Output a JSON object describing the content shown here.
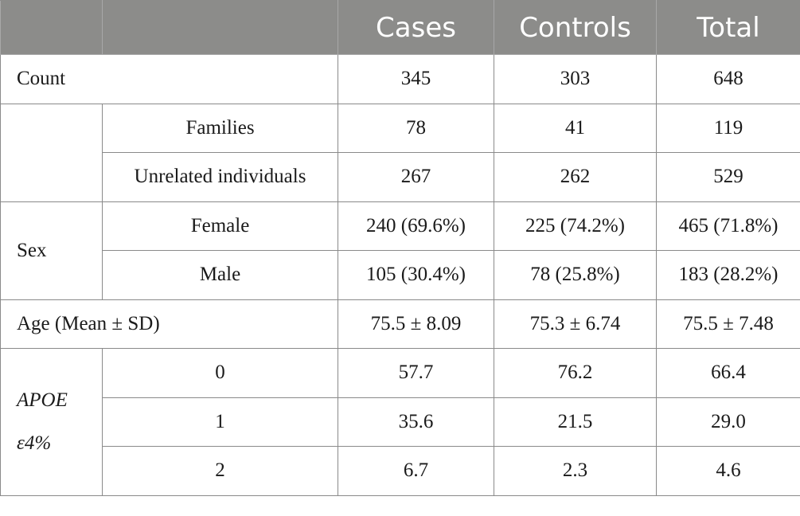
{
  "header": {
    "blank": "",
    "cases": "Cases",
    "controls": "Controls",
    "total": "Total"
  },
  "count": {
    "label": "Count",
    "cases": "345",
    "controls": "303",
    "total": "648"
  },
  "families": {
    "label": "Families",
    "cases": "78",
    "controls": "41",
    "total": "119"
  },
  "unrelated": {
    "label": "Unrelated individuals",
    "cases": "267",
    "controls": "262",
    "total": "529"
  },
  "sex": {
    "label": "Sex",
    "female": {
      "label": "Female",
      "cases": "240 (69.6%)",
      "controls": "225 (74.2%)",
      "total": "465 (71.8%)"
    },
    "male": {
      "label": "Male",
      "cases": "105 (30.4%)",
      "controls": "78 (25.8%)",
      "total": "183 (28.2%)"
    }
  },
  "age": {
    "label": "Age (Mean ± SD)",
    "cases": "75.5 ± 8.09",
    "controls": "75.3 ± 6.74",
    "total": "75.5 ± 7.48"
  },
  "apoe": {
    "label_line1": "APOE",
    "label_line2": "ε4%",
    "rows": [
      {
        "label": "0",
        "cases": "57.7",
        "controls": "76.2",
        "total": "66.4"
      },
      {
        "label": "1",
        "cases": "35.6",
        "controls": "21.5",
        "total": "29.0"
      },
      {
        "label": "2",
        "cases": "6.7",
        "controls": "2.3",
        "total": "4.6"
      }
    ]
  }
}
